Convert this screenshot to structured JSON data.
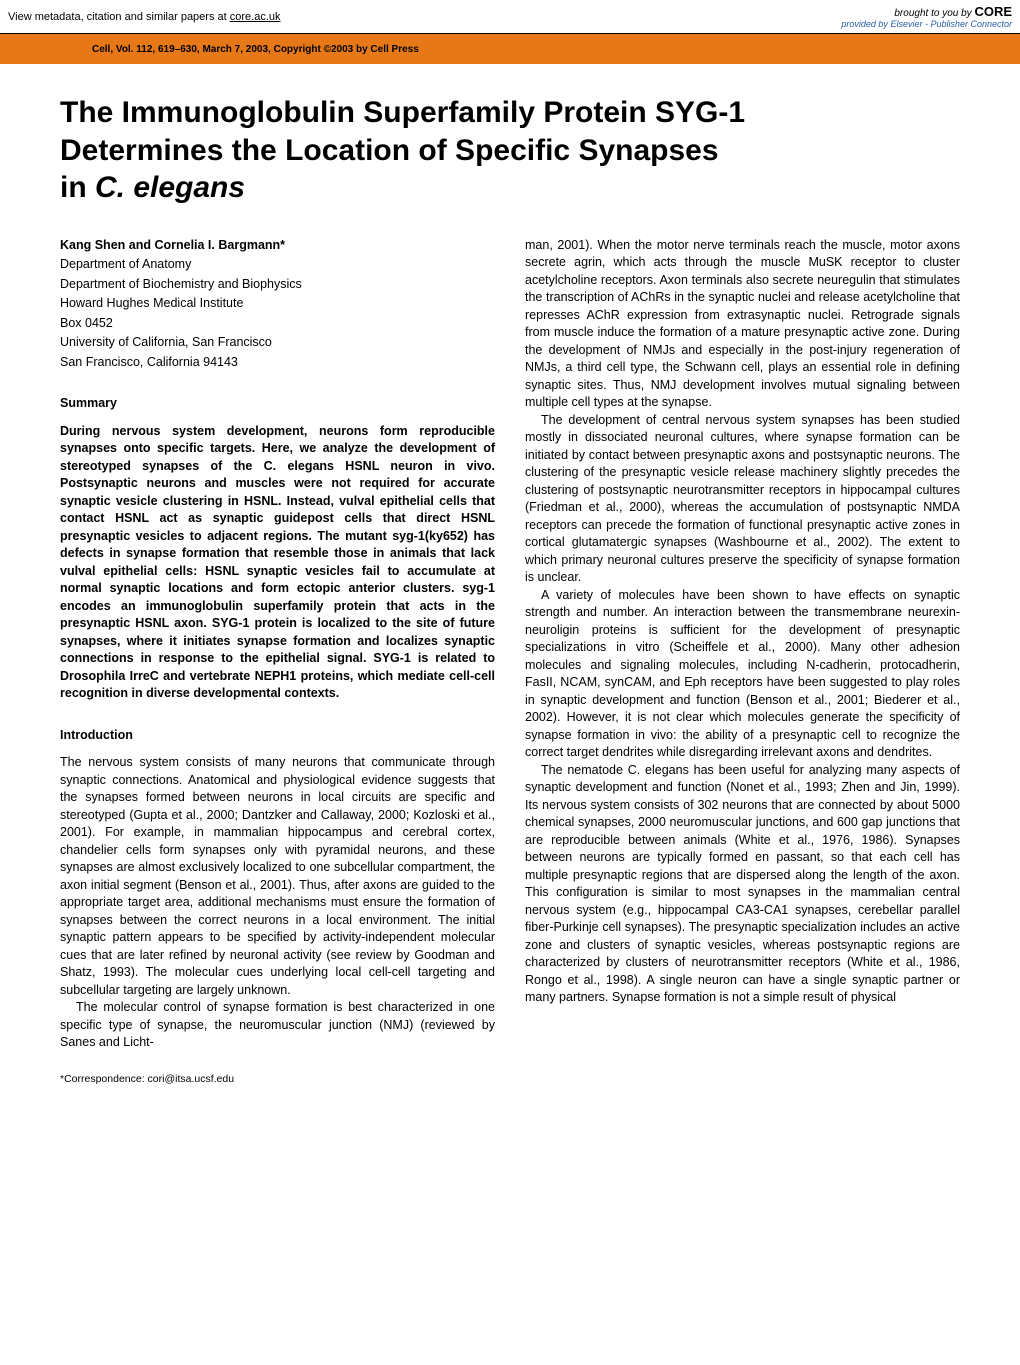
{
  "banner": {
    "left_text": "View metadata, citation and similar papers at ",
    "left_link": "core.ac.uk",
    "brought_by": "brought to you by ",
    "core": "CORE",
    "provided_prefix": "provided by ",
    "provided_by": "Elsevier - Publisher Connector"
  },
  "journal_info": "Cell, Vol. 112, 619–630, March 7, 2003, Copyright ©2003 by Cell Press",
  "title_line1": "The Immunoglobulin Superfamily Protein SYG-1",
  "title_line2": "Determines the Location of Specific Synapses",
  "title_line3": "in ",
  "title_species": "C. elegans",
  "authors": "Kang Shen and Cornelia I. Bargmann*",
  "affil": [
    "Department of Anatomy",
    "Department of Biochemistry and Biophysics",
    "Howard Hughes Medical Institute",
    "Box 0452",
    "University of California, San Francisco",
    "San Francisco, California 94143"
  ],
  "summary_head": "Summary",
  "summary": "During nervous system development, neurons form reproducible synapses onto specific targets. Here, we analyze the development of stereotyped synapses of the C. elegans HSNL neuron in vivo. Postsynaptic neurons and muscles were not required for accurate synaptic vesicle clustering in HSNL. Instead, vulval epithelial cells that contact HSNL act as synaptic guidepost cells that direct HSNL presynaptic vesicles to adjacent regions. The mutant syg-1(ky652) has defects in synapse formation that resemble those in animals that lack vulval epithelial cells: HSNL synaptic vesicles fail to accumulate at normal synaptic locations and form ectopic anterior clusters. syg-1 encodes an immunoglobulin superfamily protein that acts in the presynaptic HSNL axon. SYG-1 protein is localized to the site of future synapses, where it initiates synapse formation and localizes synaptic connections in response to the epithelial signal. SYG-1 is related to Drosophila IrreC and vertebrate NEPH1 proteins, which mediate cell-cell recognition in diverse developmental contexts.",
  "intro_head": "Introduction",
  "intro_p1": "The nervous system consists of many neurons that communicate through synaptic connections. Anatomical and physiological evidence suggests that the synapses formed between neurons in local circuits are specific and stereotyped (Gupta et al., 2000; Dantzker and Callaway, 2000; Kozloski et al., 2001). For example, in mammalian hippocampus and cerebral cortex, chandelier cells form synapses only with pyramidal neurons, and these synapses are almost exclusively localized to one subcellular compartment, the axon initial segment (Benson et al., 2001). Thus, after axons are guided to the appropriate target area, additional mechanisms must ensure the formation of synapses between the correct neurons in a local environment. The initial synaptic pattern appears to be specified by activity-independent molecular cues that are later refined by neuronal activity (see review by Goodman and Shatz, 1993). The molecular cues underlying local cell-cell targeting and subcellular targeting are largely unknown.",
  "intro_p2": "The molecular control of synapse formation is best characterized in one specific type of synapse, the neuromuscular junction (NMJ) (reviewed by Sanes and Licht-",
  "corr": "*Correspondence: cori@itsa.ucsf.edu",
  "right_p1": "man, 2001). When the motor nerve terminals reach the muscle, motor axons secrete agrin, which acts through the muscle MuSK receptor to cluster acetylcholine receptors. Axon terminals also secrete neuregulin that stimulates the transcription of AChRs in the synaptic nuclei and release acetylcholine that represses AChR expression from extrasynaptic nuclei. Retrograde signals from muscle induce the formation of a mature presynaptic active zone. During the development of NMJs and especially in the post-injury regeneration of NMJs, a third cell type, the Schwann cell, plays an essential role in defining synaptic sites. Thus, NMJ development involves mutual signaling between multiple cell types at the synapse.",
  "right_p2": "The development of central nervous system synapses has been studied mostly in dissociated neuronal cultures, where synapse formation can be initiated by contact between presynaptic axons and postsynaptic neurons. The clustering of the presynaptic vesicle release machinery slightly precedes the clustering of postsynaptic neurotransmitter receptors in hippocampal cultures (Friedman et al., 2000), whereas the accumulation of postsynaptic NMDA receptors can precede the formation of functional presynaptic active zones in cortical glutamatergic synapses (Washbourne et al., 2002). The extent to which primary neuronal cultures preserve the specificity of synapse formation is unclear.",
  "right_p3": "A variety of molecules have been shown to have effects on synaptic strength and number. An interaction between the transmembrane neurexin-neuroligin proteins is sufficient for the development of presynaptic specializations in vitro (Scheiffele et al., 2000). Many other adhesion molecules and signaling molecules, including N-cadherin, protocadherin, FasII, NCAM, synCAM, and Eph receptors have been suggested to play roles in synaptic development and function (Benson et al., 2001; Biederer et al., 2002). However, it is not clear which molecules generate the specificity of synapse formation in vivo: the ability of a presynaptic cell to recognize the correct target dendrites while disregarding irrelevant axons and dendrites.",
  "right_p4": "The nematode C. elegans has been useful for analyzing many aspects of synaptic development and function (Nonet et al., 1993; Zhen and Jin, 1999). Its nervous system consists of 302 neurons that are connected by about 5000 chemical synapses, 2000 neuromuscular junctions, and 600 gap junctions that are reproducible between animals (White et al., 1976, 1986). Synapses between neurons are typically formed en passant, so that each cell has multiple presynaptic regions that are dispersed along the length of the axon. This configuration is similar to most synapses in the mammalian central nervous system (e.g., hippocampal CA3-CA1 synapses, cerebellar parallel fiber-Purkinje cell synapses). The presynaptic specialization includes an active zone and clusters of synaptic vesicles, whereas postsynaptic regions are characterized by clusters of neurotransmitter receptors (White et al., 1986, Rongo et al., 1998). A single neuron can have a single synaptic partner or many partners. Synapse formation is not a simple result of physical",
  "colors": {
    "orange": "#e67817",
    "link_blue": "#2a5caa"
  }
}
